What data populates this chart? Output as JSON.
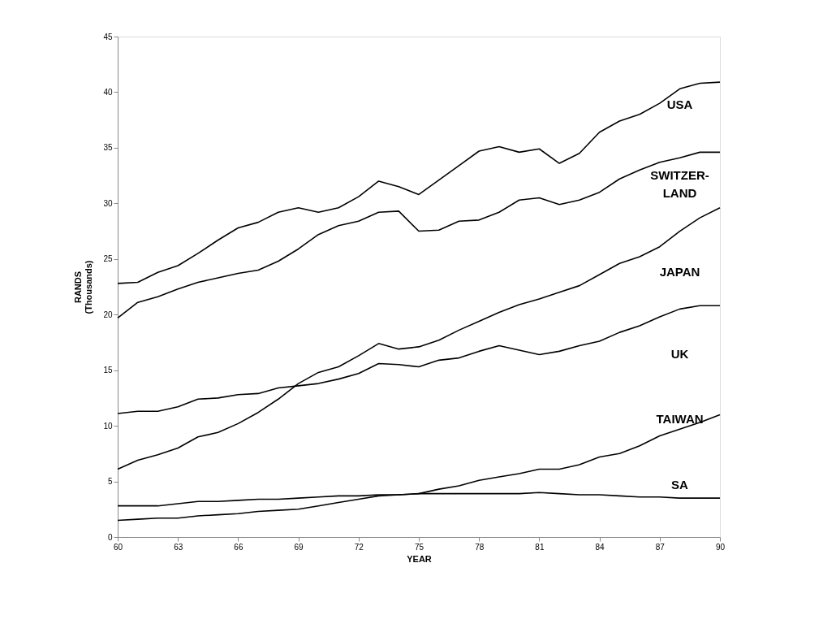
{
  "chart_data": {
    "type": "line",
    "xlabel": "YEAR",
    "ylabel": "RANDS\n(Thousands)",
    "x": [
      60,
      61,
      62,
      63,
      64,
      65,
      66,
      67,
      68,
      69,
      70,
      71,
      72,
      73,
      74,
      75,
      76,
      77,
      78,
      79,
      80,
      81,
      82,
      83,
      84,
      85,
      86,
      87,
      88,
      89,
      90
    ],
    "xlim": [
      60,
      90
    ],
    "xticks": [
      60,
      63,
      66,
      69,
      72,
      75,
      78,
      81,
      84,
      87,
      90
    ],
    "ylim": [
      0,
      45
    ],
    "yticks": [
      0,
      5,
      10,
      15,
      20,
      25,
      30,
      35,
      40,
      45
    ],
    "grid": false,
    "legend": false,
    "marker": "none",
    "line_style": "solid",
    "series": [
      {
        "name": "USA",
        "color": "#000000",
        "values": [
          22.8,
          22.9,
          23.8,
          24.4,
          25.5,
          26.7,
          27.8,
          28.3,
          29.2,
          29.6,
          29.2,
          29.6,
          30.6,
          32.0,
          31.5,
          30.8,
          32.1,
          33.4,
          34.7,
          35.1,
          34.6,
          34.9,
          33.6,
          34.5,
          36.4,
          37.4,
          38.0,
          39.0,
          40.3,
          40.8,
          40.9
        ]
      },
      {
        "name": "SWITZER-\nLAND",
        "color": "#000000",
        "values": [
          19.7,
          21.1,
          21.6,
          22.3,
          22.9,
          23.3,
          23.7,
          24.0,
          24.8,
          25.9,
          27.2,
          28.0,
          28.4,
          29.2,
          29.3,
          27.5,
          27.6,
          28.4,
          28.5,
          29.2,
          30.3,
          30.5,
          29.9,
          30.3,
          31.0,
          32.2,
          33.0,
          33.7,
          34.1,
          34.6,
          34.6
        ]
      },
      {
        "name": "JAPAN",
        "color": "#000000",
        "values": [
          6.1,
          6.9,
          7.4,
          8.0,
          9.0,
          9.4,
          10.2,
          11.2,
          12.4,
          13.8,
          14.8,
          15.3,
          16.3,
          17.4,
          16.9,
          17.1,
          17.7,
          18.6,
          19.4,
          20.2,
          20.9,
          21.4,
          22.0,
          22.6,
          23.6,
          24.6,
          25.2,
          26.1,
          27.5,
          28.7,
          29.6
        ]
      },
      {
        "name": "UK",
        "color": "#000000",
        "values": [
          11.1,
          11.3,
          11.3,
          11.7,
          12.4,
          12.5,
          12.8,
          12.9,
          13.4,
          13.6,
          13.8,
          14.2,
          14.7,
          15.6,
          15.5,
          15.3,
          15.9,
          16.1,
          16.7,
          17.2,
          16.8,
          16.4,
          16.7,
          17.2,
          17.6,
          18.4,
          19.0,
          19.8,
          20.5,
          20.8,
          20.8
        ]
      },
      {
        "name": "TAIWAN",
        "color": "#000000",
        "values": [
          1.5,
          1.6,
          1.7,
          1.7,
          1.9,
          2.0,
          2.1,
          2.3,
          2.4,
          2.5,
          2.8,
          3.1,
          3.4,
          3.7,
          3.8,
          3.9,
          4.3,
          4.6,
          5.1,
          5.4,
          5.7,
          6.1,
          6.1,
          6.5,
          7.2,
          7.5,
          8.2,
          9.1,
          9.7,
          10.3,
          11.0
        ]
      },
      {
        "name": "SA",
        "color": "#000000",
        "values": [
          2.8,
          2.8,
          2.8,
          3.0,
          3.2,
          3.2,
          3.3,
          3.4,
          3.4,
          3.5,
          3.6,
          3.7,
          3.7,
          3.8,
          3.8,
          3.9,
          3.9,
          3.9,
          3.9,
          3.9,
          3.9,
          4.0,
          3.9,
          3.8,
          3.8,
          3.7,
          3.6,
          3.6,
          3.5,
          3.5,
          3.5
        ]
      }
    ]
  }
}
